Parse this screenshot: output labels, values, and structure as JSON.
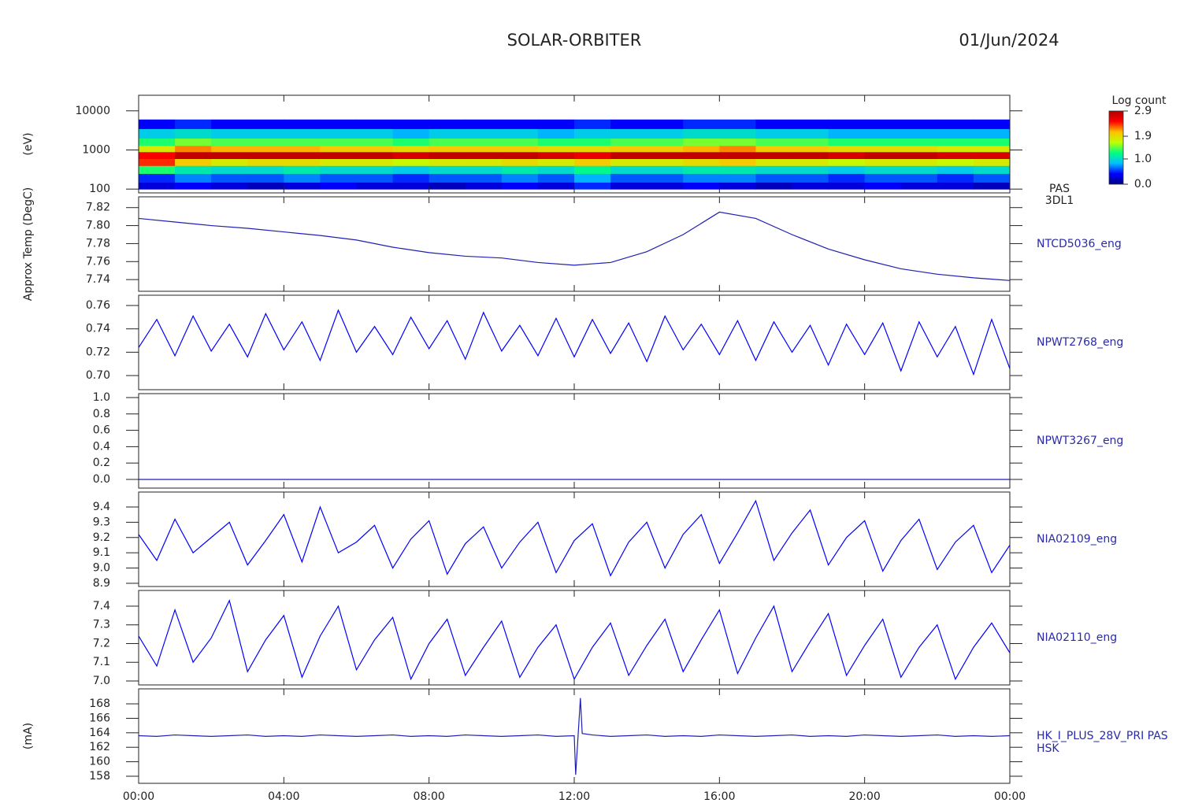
{
  "header": {
    "title": "SOLAR-ORBITER",
    "date": "01/Jun/2024"
  },
  "chart_data": [
    {
      "type": "heatmap",
      "name": "PAS",
      "subname": "3DL1",
      "ylabel": "(eV)",
      "log": true,
      "xlim": [
        0,
        24
      ],
      "ylim": [
        80,
        25000
      ],
      "yticks": [
        100,
        1000,
        10000
      ],
      "x_bins": [
        0,
        1,
        2,
        3,
        4,
        5,
        6,
        7,
        8,
        9,
        10,
        11,
        12,
        13,
        14,
        15,
        16,
        17,
        18,
        19,
        20,
        21,
        22,
        23,
        24
      ],
      "y_bins": [
        100,
        150,
        250,
        400,
        600,
        900,
        1300,
        2000,
        3500,
        6000
      ],
      "values": [
        [
          0.3,
          0.4,
          0.3,
          0.2,
          0.3,
          0.4,
          0.3,
          0.3,
          0.2,
          0.3,
          0.4,
          0.3,
          0.5,
          0.3,
          0.3,
          0.4,
          0.3,
          0.2,
          0.3,
          0.3,
          0.4,
          0.3,
          0.3,
          0.2
        ],
        [
          0.5,
          0.7,
          0.6,
          0.6,
          0.7,
          0.6,
          0.6,
          0.5,
          0.6,
          0.6,
          0.7,
          0.6,
          0.8,
          0.6,
          0.6,
          0.7,
          0.7,
          0.6,
          0.6,
          0.5,
          0.6,
          0.6,
          0.5,
          0.6
        ],
        [
          1.3,
          1.1,
          1.0,
          1.0,
          1.1,
          1.0,
          1.0,
          0.9,
          1.0,
          1.0,
          1.1,
          1.0,
          1.2,
          1.0,
          1.0,
          1.1,
          1.1,
          1.0,
          1.0,
          0.9,
          1.0,
          1.0,
          0.9,
          1.0
        ],
        [
          2.4,
          2.0,
          1.8,
          1.9,
          1.9,
          1.8,
          1.8,
          1.7,
          1.8,
          1.8,
          1.9,
          1.8,
          2.0,
          1.8,
          1.8,
          1.9,
          2.0,
          1.8,
          1.8,
          1.7,
          1.8,
          1.8,
          1.7,
          1.8
        ],
        [
          2.5,
          2.8,
          2.8,
          2.8,
          2.8,
          2.8,
          2.8,
          2.7,
          2.8,
          2.8,
          2.8,
          2.7,
          2.6,
          2.8,
          2.8,
          2.8,
          2.8,
          2.8,
          2.8,
          2.7,
          2.8,
          2.8,
          2.7,
          2.7
        ],
        [
          1.8,
          2.2,
          2.1,
          2.1,
          2.1,
          2.0,
          2.0,
          1.9,
          2.0,
          2.0,
          2.0,
          1.9,
          1.9,
          2.0,
          2.0,
          2.1,
          2.2,
          2.0,
          2.0,
          1.9,
          1.9,
          1.9,
          1.8,
          1.8
        ],
        [
          1.3,
          1.5,
          1.4,
          1.4,
          1.4,
          1.4,
          1.4,
          1.3,
          1.4,
          1.4,
          1.4,
          1.3,
          1.3,
          1.4,
          1.4,
          1.5,
          1.5,
          1.4,
          1.4,
          1.3,
          1.3,
          1.3,
          1.3,
          1.3
        ],
        [
          0.9,
          1.0,
          0.9,
          0.9,
          0.9,
          0.9,
          0.9,
          0.8,
          0.9,
          0.9,
          0.9,
          0.8,
          0.9,
          0.9,
          0.9,
          1.0,
          1.0,
          0.9,
          0.9,
          0.8,
          0.8,
          0.8,
          0.8,
          0.8
        ],
        [
          0.4,
          0.5,
          0.4,
          0.4,
          0.4,
          0.4,
          0.4,
          0.4,
          0.4,
          0.4,
          0.4,
          0.4,
          0.5,
          0.4,
          0.4,
          0.5,
          0.5,
          0.4,
          0.4,
          0.4,
          0.4,
          0.4,
          0.4,
          0.4
        ]
      ],
      "colorbar": {
        "label": "Log count",
        "clim": [
          0,
          2.9
        ],
        "ticks": [
          {
            "value": 0,
            "label": "0.0"
          },
          {
            "value": 1,
            "label": "1.0"
          },
          1.9,
          2.9
        ],
        "colors": [
          "#000080",
          "#0000ff",
          "#00c0ff",
          "#00ff80",
          "#c0ff00",
          "#ffc000",
          "#ff0000",
          "#b00000"
        ]
      }
    },
    {
      "type": "line",
      "ylabel": "Approx Temp (DegC)",
      "xlim": [
        0,
        24
      ],
      "ylim": [
        7.727,
        7.832
      ],
      "yticks": [
        7.74,
        7.76,
        7.78,
        {
          "value": 7.8,
          "label": "7.80"
        },
        7.82
      ],
      "x": [
        0,
        1,
        2,
        3,
        4,
        5,
        6,
        7,
        8,
        9,
        10,
        11,
        12,
        13,
        14,
        15,
        16,
        17,
        18,
        19,
        20,
        21,
        22,
        23,
        24
      ],
      "series": [
        {
          "name": "NTCD5036_eng",
          "color": "#1f1fb4",
          "values": [
            7.808,
            7.804,
            7.8,
            7.797,
            7.793,
            7.789,
            7.784,
            7.776,
            7.77,
            7.766,
            7.764,
            7.759,
            7.756,
            7.759,
            7.771,
            7.79,
            7.815,
            7.808,
            7.79,
            7.774,
            7.762,
            7.752,
            7.746,
            7.742,
            7.739
          ]
        }
      ]
    },
    {
      "type": "line",
      "xlim": [
        0,
        24
      ],
      "ylim": [
        0.6879,
        0.7688
      ],
      "yticks": [
        {
          "value": 0.7,
          "label": "0.70"
        },
        0.72,
        0.74,
        0.76
      ],
      "x": [
        0,
        0.5,
        1,
        1.5,
        2,
        2.5,
        3,
        3.5,
        4,
        4.5,
        5,
        5.5,
        6,
        6.5,
        7,
        7.5,
        8,
        8.5,
        9,
        9.5,
        10,
        10.5,
        11,
        11.5,
        12,
        12.5,
        13,
        13.5,
        14,
        14.5,
        15,
        15.5,
        16,
        16.5,
        17,
        17.5,
        18,
        18.5,
        19,
        19.5,
        20,
        20.5,
        21,
        21.5,
        22,
        22.5,
        23,
        23.5,
        24
      ],
      "series": [
        {
          "name": "NPWT2768_eng",
          "color": "#0000ff",
          "values": [
            0.724,
            0.748,
            0.717,
            0.751,
            0.721,
            0.744,
            0.716,
            0.753,
            0.722,
            0.746,
            0.713,
            0.756,
            0.72,
            0.742,
            0.718,
            0.75,
            0.723,
            0.747,
            0.714,
            0.754,
            0.721,
            0.743,
            0.717,
            0.749,
            0.716,
            0.748,
            0.719,
            0.745,
            0.712,
            0.751,
            0.722,
            0.744,
            0.718,
            0.747,
            0.713,
            0.746,
            0.72,
            0.743,
            0.709,
            0.744,
            0.718,
            0.745,
            0.704,
            0.746,
            0.716,
            0.742,
            0.701,
            0.748,
            0.706
          ]
        }
      ]
    },
    {
      "type": "line",
      "xlim": [
        0,
        24
      ],
      "ylim": [
        -0.106,
        1.048
      ],
      "yticks": [
        {
          "value": 0,
          "label": "0.0"
        },
        0.2,
        0.4,
        0.6,
        0.8,
        {
          "value": 1,
          "label": "1.0"
        }
      ],
      "x": [
        0,
        1,
        2,
        3,
        4,
        5,
        6,
        7,
        8,
        9,
        10,
        11,
        12,
        13,
        14,
        15,
        16,
        17,
        18,
        19,
        20,
        21,
        22,
        23,
        24
      ],
      "series": [
        {
          "name": "NPWT3267_eng",
          "color": "#1f1fb4",
          "values": [
            0,
            0,
            0,
            0,
            0,
            0,
            0,
            0,
            0,
            0,
            0,
            0,
            0,
            0,
            0,
            0,
            0,
            0,
            0,
            0,
            0,
            0,
            0,
            0,
            0
          ]
        }
      ]
    },
    {
      "type": "line",
      "xlim": [
        0,
        24
      ],
      "ylim": [
        8.879,
        9.498
      ],
      "yticks": [
        8.9,
        {
          "value": 9,
          "label": "9.0"
        },
        9.1,
        9.2,
        9.3,
        9.4
      ],
      "x": [
        0,
        0.5,
        1,
        1.5,
        2,
        2.5,
        3,
        3.5,
        4,
        4.5,
        5,
        5.5,
        6,
        6.5,
        7,
        7.5,
        8,
        8.5,
        9,
        9.5,
        10,
        10.5,
        11,
        11.5,
        12,
        12.5,
        13,
        13.5,
        14,
        14.5,
        15,
        15.5,
        16,
        16.5,
        17,
        17.5,
        18,
        18.5,
        19,
        19.5,
        20,
        20.5,
        21,
        21.5,
        22,
        22.5,
        23,
        23.5,
        24
      ],
      "series": [
        {
          "name": "NIA02109_eng",
          "color": "#0000ff",
          "values": [
            9.22,
            9.05,
            9.32,
            9.1,
            9.2,
            9.3,
            9.02,
            9.18,
            9.35,
            9.04,
            9.4,
            9.1,
            9.17,
            9.28,
            9.0,
            9.19,
            9.31,
            8.96,
            9.16,
            9.27,
            9.0,
            9.17,
            9.3,
            8.97,
            9.18,
            9.29,
            8.95,
            9.17,
            9.3,
            9.0,
            9.22,
            9.35,
            9.03,
            9.23,
            9.44,
            9.05,
            9.23,
            9.38,
            9.02,
            9.2,
            9.31,
            8.98,
            9.18,
            9.32,
            8.99,
            9.17,
            9.28,
            8.97,
            9.15
          ]
        }
      ]
    },
    {
      "type": "line",
      "xlim": [
        0,
        24
      ],
      "ylim": [
        6.979,
        7.484
      ],
      "yticks": [
        {
          "value": 7,
          "label": "7.0"
        },
        7.1,
        7.2,
        7.3,
        7.4
      ],
      "x": [
        0,
        0.5,
        1,
        1.5,
        2,
        2.5,
        3,
        3.5,
        4,
        4.5,
        5,
        5.5,
        6,
        6.5,
        7,
        7.5,
        8,
        8.5,
        9,
        9.5,
        10,
        10.5,
        11,
        11.5,
        12,
        12.5,
        13,
        13.5,
        14,
        14.5,
        15,
        15.5,
        16,
        16.5,
        17,
        17.5,
        18,
        18.5,
        19,
        19.5,
        20,
        20.5,
        21,
        21.5,
        22,
        22.5,
        23,
        23.5,
        24
      ],
      "series": [
        {
          "name": "NIA02110_eng",
          "color": "#0000ff",
          "values": [
            7.24,
            7.08,
            7.38,
            7.1,
            7.23,
            7.43,
            7.05,
            7.22,
            7.35,
            7.02,
            7.24,
            7.4,
            7.06,
            7.22,
            7.34,
            7.01,
            7.2,
            7.33,
            7.03,
            7.18,
            7.32,
            7.02,
            7.18,
            7.3,
            7.01,
            7.18,
            7.31,
            7.03,
            7.19,
            7.33,
            7.05,
            7.22,
            7.38,
            7.04,
            7.23,
            7.4,
            7.05,
            7.21,
            7.36,
            7.03,
            7.19,
            7.33,
            7.02,
            7.18,
            7.3,
            7.01,
            7.18,
            7.31,
            7.15
          ]
        }
      ]
    },
    {
      "type": "line",
      "ylabel": "(mA)",
      "subname": "HSK",
      "xlim": [
        0,
        24
      ],
      "ylim": [
        157.02,
        170.07
      ],
      "yticks": [
        158,
        160,
        162,
        164,
        166,
        168
      ],
      "xticks": [
        {
          "value": 0,
          "label": "00:00"
        },
        {
          "value": 4,
          "label": "04:00"
        },
        {
          "value": 8,
          "label": "08:00"
        },
        {
          "value": 12,
          "label": "12:00"
        },
        {
          "value": 16,
          "label": "16:00"
        },
        {
          "value": 20,
          "label": "20:00"
        },
        {
          "value": 24,
          "label": "00:00"
        }
      ],
      "x": [
        0,
        0.5,
        1,
        1.5,
        2,
        2.5,
        3,
        3.5,
        4,
        4.5,
        5,
        5.5,
        6,
        6.5,
        7,
        7.5,
        8,
        8.5,
        9,
        9.5,
        10,
        10.5,
        11,
        11.5,
        12,
        12.04,
        12.17,
        12.22,
        12.5,
        13,
        13.5,
        14,
        14.5,
        15,
        15.5,
        16,
        16.5,
        17,
        17.5,
        18,
        18.5,
        19,
        19.5,
        20,
        20.5,
        21,
        21.5,
        22,
        22.5,
        23,
        23.5,
        24
      ],
      "series": [
        {
          "name": "HK_I_PLUS_28V_PRI PAS",
          "color": "#1f1fb4",
          "values": [
            163.6,
            163.5,
            163.7,
            163.6,
            163.5,
            163.6,
            163.7,
            163.5,
            163.6,
            163.5,
            163.7,
            163.6,
            163.5,
            163.6,
            163.7,
            163.5,
            163.6,
            163.5,
            163.7,
            163.6,
            163.5,
            163.6,
            163.7,
            163.5,
            163.6,
            158.2,
            168.8,
            163.9,
            163.7,
            163.5,
            163.6,
            163.7,
            163.5,
            163.6,
            163.5,
            163.7,
            163.6,
            163.5,
            163.6,
            163.7,
            163.5,
            163.6,
            163.5,
            163.7,
            163.6,
            163.5,
            163.6,
            163.7,
            163.5,
            163.6,
            163.5,
            163.6
          ]
        }
      ]
    }
  ]
}
